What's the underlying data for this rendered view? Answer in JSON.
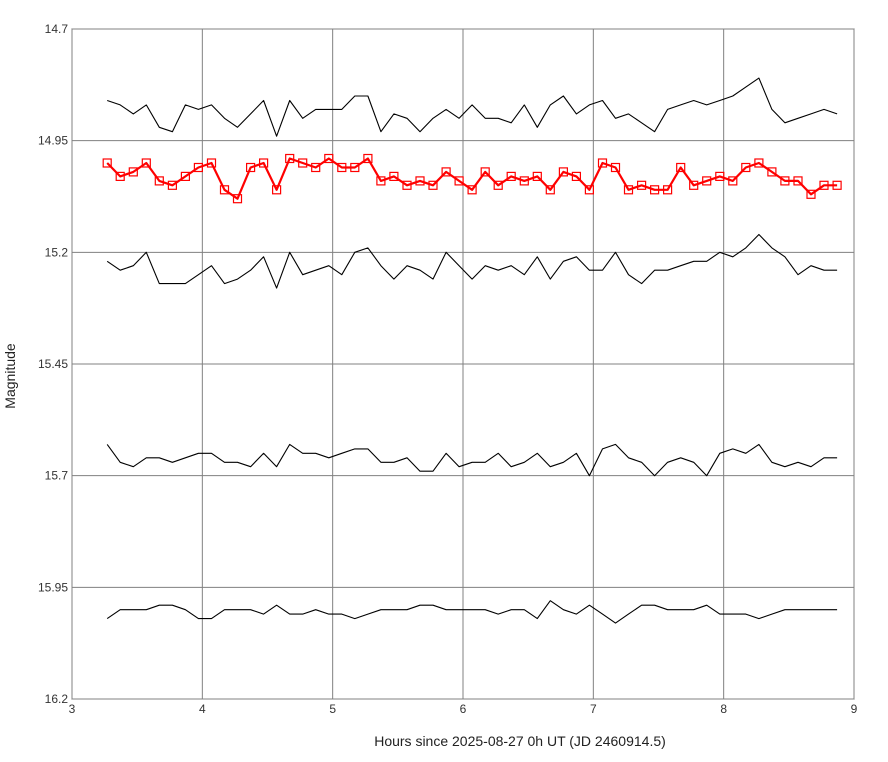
{
  "chart_data": {
    "type": "line",
    "title": "",
    "xlabel": "Hours since 2025-08-27 0h UT (JD 2460914.5)",
    "ylabel": "Magnitude",
    "xlim": [
      3,
      9
    ],
    "ylim": [
      14.7,
      16.2
    ],
    "y_inverted": true,
    "grid": true,
    "legend": "none",
    "x_ticks": [
      "3",
      "4",
      "5",
      "6",
      "7",
      "8",
      "9"
    ],
    "y_ticks": [
      "14.7",
      "14.95",
      "15.2",
      "15.45",
      "15.7",
      "15.95",
      "16.2"
    ],
    "x": [
      3.27,
      3.37,
      3.47,
      3.57,
      3.67,
      3.77,
      3.87,
      3.97,
      4.07,
      4.17,
      4.27,
      4.37,
      4.47,
      4.57,
      4.67,
      4.77,
      4.87,
      4.97,
      5.07,
      5.17,
      5.27,
      5.37,
      5.47,
      5.57,
      5.67,
      5.77,
      5.87,
      5.97,
      6.07,
      6.17,
      6.27,
      6.37,
      6.47,
      6.57,
      6.67,
      6.77,
      6.87,
      6.97,
      7.07,
      7.17,
      7.27,
      7.37,
      7.47,
      7.57,
      7.67,
      7.77,
      7.87,
      7.97,
      8.07,
      8.17,
      8.27,
      8.37,
      8.47,
      8.57,
      8.67,
      8.77,
      8.87
    ],
    "series": [
      {
        "color": "#ff0000",
        "marker": "square",
        "values": [
          15.0,
          15.03,
          15.02,
          15.0,
          15.04,
          15.05,
          15.03,
          15.01,
          15.0,
          15.06,
          15.08,
          15.01,
          15.0,
          15.06,
          14.99,
          15.0,
          15.01,
          14.99,
          15.01,
          15.01,
          14.99,
          15.04,
          15.03,
          15.05,
          15.04,
          15.05,
          15.02,
          15.04,
          15.06,
          15.02,
          15.05,
          15.03,
          15.04,
          15.03,
          15.06,
          15.02,
          15.03,
          15.06,
          15.0,
          15.01,
          15.06,
          15.05,
          15.06,
          15.06,
          15.01,
          15.05,
          15.04,
          15.03,
          15.04,
          15.01,
          15.0,
          15.02,
          15.04,
          15.04,
          15.07,
          15.05,
          15.05
        ]
      },
      {
        "color": "#000000",
        "marker": "none",
        "values": [
          14.86,
          14.87,
          14.89,
          14.87,
          14.92,
          14.93,
          14.87,
          14.88,
          14.87,
          14.9,
          14.92,
          14.89,
          14.86,
          14.94,
          14.86,
          14.9,
          14.88,
          14.88,
          14.88,
          14.85,
          14.85,
          14.93,
          14.89,
          14.9,
          14.93,
          14.9,
          14.88,
          14.9,
          14.87,
          14.9,
          14.9,
          14.91,
          14.87,
          14.92,
          14.87,
          14.85,
          14.89,
          14.87,
          14.86,
          14.9,
          14.89,
          14.91,
          14.93,
          14.88,
          14.87,
          14.86,
          14.87,
          14.86,
          14.85,
          14.83,
          14.81,
          14.88,
          14.91,
          14.9,
          14.89,
          14.88,
          14.89
        ]
      },
      {
        "color": "#000000",
        "marker": "none",
        "values": [
          15.22,
          15.24,
          15.23,
          15.2,
          15.27,
          15.27,
          15.27,
          15.25,
          15.23,
          15.27,
          15.26,
          15.24,
          15.21,
          15.28,
          15.2,
          15.25,
          15.24,
          15.23,
          15.25,
          15.2,
          15.19,
          15.23,
          15.26,
          15.23,
          15.24,
          15.26,
          15.2,
          15.23,
          15.26,
          15.23,
          15.24,
          15.23,
          15.25,
          15.21,
          15.26,
          15.22,
          15.21,
          15.24,
          15.24,
          15.2,
          15.25,
          15.27,
          15.24,
          15.24,
          15.23,
          15.22,
          15.22,
          15.2,
          15.21,
          15.19,
          15.16,
          15.19,
          15.21,
          15.25,
          15.23,
          15.24,
          15.24
        ]
      },
      {
        "color": "#000000",
        "marker": "none",
        "values": [
          15.63,
          15.67,
          15.68,
          15.66,
          15.66,
          15.67,
          15.66,
          15.65,
          15.65,
          15.67,
          15.67,
          15.68,
          15.65,
          15.68,
          15.63,
          15.65,
          15.65,
          15.66,
          15.65,
          15.64,
          15.64,
          15.67,
          15.67,
          15.66,
          15.69,
          15.69,
          15.65,
          15.68,
          15.67,
          15.67,
          15.65,
          15.68,
          15.67,
          15.65,
          15.68,
          15.67,
          15.65,
          15.7,
          15.64,
          15.63,
          15.66,
          15.67,
          15.7,
          15.67,
          15.66,
          15.67,
          15.7,
          15.65,
          15.64,
          15.65,
          15.63,
          15.67,
          15.68,
          15.67,
          15.68,
          15.66,
          15.66
        ]
      },
      {
        "color": "#000000",
        "marker": "none",
        "values": [
          16.02,
          16.0,
          16.0,
          16.0,
          15.99,
          15.99,
          16.0,
          16.02,
          16.02,
          16.0,
          16.0,
          16.0,
          16.01,
          15.99,
          16.01,
          16.01,
          16.0,
          16.01,
          16.01,
          16.02,
          16.01,
          16.0,
          16.0,
          16.0,
          15.99,
          15.99,
          16.0,
          16.0,
          16.0,
          16.0,
          16.01,
          16.0,
          16.0,
          16.02,
          15.98,
          16.0,
          16.01,
          15.99,
          16.01,
          16.03,
          16.01,
          15.99,
          15.99,
          16.0,
          16.0,
          16.0,
          15.99,
          16.01,
          16.01,
          16.01,
          16.02,
          16.01,
          16.0,
          16.0,
          16.0,
          16.0,
          16.0
        ]
      }
    ]
  }
}
